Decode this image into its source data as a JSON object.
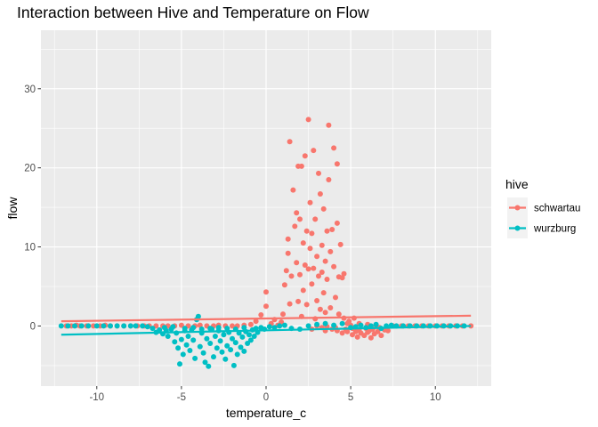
{
  "chart_data": {
    "type": "scatter",
    "title": "Interaction between Hive and Temperature on Flow",
    "xlabel": "temperature_c",
    "ylabel": "flow",
    "xlim": [
      -13.3,
      13.3
    ],
    "ylim": [
      -7.6,
      37.4
    ],
    "x_ticks": [
      -10,
      -5,
      0,
      5,
      10
    ],
    "x_tick_labels": [
      "-10",
      "-5",
      "0",
      "5",
      "10"
    ],
    "y_ticks": [
      0,
      10,
      20,
      30
    ],
    "y_tick_labels": [
      "0",
      "10",
      "20",
      "30"
    ],
    "grid": true,
    "legend": {
      "title": "hive",
      "position": "right"
    },
    "series": [
      {
        "name": "schwartau",
        "color": "#f8766d",
        "trend": [
          [
            -12.1,
            0.6
          ],
          [
            12.1,
            1.3
          ]
        ],
        "points": [
          [
            -11.8,
            0.0
          ],
          [
            -11.5,
            0.0
          ],
          [
            -11.2,
            0.1
          ],
          [
            -11.0,
            0.0
          ],
          [
            -10.6,
            0.0
          ],
          [
            -10.2,
            0.0
          ],
          [
            -9.8,
            0.0
          ],
          [
            -9.5,
            0.1
          ],
          [
            -9.2,
            0.0
          ],
          [
            -8.8,
            0.0
          ],
          [
            -8.4,
            0.0
          ],
          [
            -8.0,
            0.0
          ],
          [
            -7.6,
            0.0
          ],
          [
            -7.2,
            0.0
          ],
          [
            -6.9,
            0.0
          ],
          [
            -6.5,
            0.0
          ],
          [
            -6.1,
            0.0
          ],
          [
            -5.8,
            0.0
          ],
          [
            -5.4,
            0.0
          ],
          [
            -5.0,
            0.1
          ],
          [
            -4.6,
            0.0
          ],
          [
            -4.2,
            0.0
          ],
          [
            -3.9,
            0.1
          ],
          [
            -3.5,
            0.0
          ],
          [
            -3.1,
            0.0
          ],
          [
            -2.8,
            0.1
          ],
          [
            -2.4,
            0.0
          ],
          [
            -2.0,
            0.0
          ],
          [
            -1.7,
            0.0
          ],
          [
            -1.3,
            0.1
          ],
          [
            -0.9,
            0.2
          ],
          [
            -0.6,
            0.6
          ],
          [
            -0.3,
            1.4
          ],
          [
            0.0,
            2.5
          ],
          [
            0.0,
            4.3
          ],
          [
            0.3,
            0.3
          ],
          [
            0.5,
            0.8
          ],
          [
            0.7,
            0.1
          ],
          [
            0.9,
            0.5
          ],
          [
            1.0,
            1.5
          ],
          [
            1.1,
            5.2
          ],
          [
            1.2,
            7.0
          ],
          [
            1.3,
            9.2
          ],
          [
            1.3,
            11.0
          ],
          [
            1.4,
            2.8
          ],
          [
            1.4,
            23.3
          ],
          [
            1.5,
            6.3
          ],
          [
            1.6,
            17.2
          ],
          [
            1.7,
            12.6
          ],
          [
            1.8,
            8.0
          ],
          [
            1.8,
            14.3
          ],
          [
            1.9,
            3.1
          ],
          [
            1.9,
            20.2
          ],
          [
            2.0,
            6.5
          ],
          [
            2.0,
            13.5
          ],
          [
            2.1,
            1.2
          ],
          [
            2.1,
            20.2
          ],
          [
            2.2,
            10.5
          ],
          [
            2.2,
            4.5
          ],
          [
            2.3,
            21.5
          ],
          [
            2.3,
            7.7
          ],
          [
            2.4,
            12.0
          ],
          [
            2.4,
            2.7
          ],
          [
            2.5,
            26.1
          ],
          [
            2.5,
            7.2
          ],
          [
            2.6,
            15.6
          ],
          [
            2.6,
            9.8
          ],
          [
            2.7,
            5.3
          ],
          [
            2.7,
            11.7
          ],
          [
            2.8,
            7.3
          ],
          [
            2.8,
            22.2
          ],
          [
            2.9,
            13.5
          ],
          [
            2.9,
            0.9
          ],
          [
            3.0,
            8.8
          ],
          [
            3.0,
            3.2
          ],
          [
            3.1,
            19.3
          ],
          [
            3.1,
            6.3
          ],
          [
            3.2,
            16.7
          ],
          [
            3.2,
            2.1
          ],
          [
            3.3,
            10.2
          ],
          [
            3.3,
            6.8
          ],
          [
            3.4,
            14.8
          ],
          [
            3.4,
            4.2
          ],
          [
            3.5,
            8.2
          ],
          [
            3.5,
            1.7
          ],
          [
            3.6,
            12.0
          ],
          [
            3.6,
            5.9
          ],
          [
            3.7,
            18.5
          ],
          [
            3.7,
            25.4
          ],
          [
            3.8,
            9.4
          ],
          [
            3.8,
            2.3
          ],
          [
            3.9,
            12.2
          ],
          [
            4.0,
            22.5
          ],
          [
            4.0,
            7.5
          ],
          [
            4.1,
            3.6
          ],
          [
            4.2,
            20.5
          ],
          [
            4.2,
            13.0
          ],
          [
            4.3,
            6.2
          ],
          [
            4.3,
            1.5
          ],
          [
            4.4,
            10.3
          ],
          [
            4.5,
            6.1
          ],
          [
            4.6,
            1.0
          ],
          [
            4.6,
            6.6
          ],
          [
            4.8,
            0.3
          ],
          [
            4.9,
            0.6
          ],
          [
            5.0,
            0.1
          ],
          [
            5.2,
            1.0
          ],
          [
            5.5,
            0.3
          ],
          [
            6.0,
            0.2
          ],
          [
            6.5,
            0.1
          ],
          [
            3.0,
            0.0
          ],
          [
            3.3,
            -0.2
          ],
          [
            3.6,
            -0.1
          ],
          [
            3.9,
            -0.4
          ],
          [
            4.2,
            -0.6
          ],
          [
            4.5,
            -0.9
          ],
          [
            4.8,
            -0.7
          ],
          [
            5.1,
            -1.1
          ],
          [
            5.4,
            -1.4
          ],
          [
            5.6,
            -0.9
          ],
          [
            5.8,
            -1.2
          ],
          [
            6.0,
            -0.8
          ],
          [
            6.2,
            -1.5
          ],
          [
            6.4,
            -1.0
          ],
          [
            6.6,
            -0.7
          ],
          [
            6.8,
            -1.2
          ],
          [
            7.0,
            -0.5
          ],
          [
            7.2,
            -0.6
          ],
          [
            5.1,
            -0.3
          ],
          [
            5.5,
            -0.5
          ],
          [
            5.9,
            -0.3
          ],
          [
            6.3,
            -0.4
          ],
          [
            6.7,
            -0.2
          ],
          [
            7.1,
            -0.3
          ],
          [
            2.7,
            -0.4
          ],
          [
            3.5,
            -0.6
          ],
          [
            4.1,
            -0.2
          ],
          [
            4.7,
            -0.4
          ],
          [
            5.3,
            -0.7
          ],
          [
            6.1,
            -0.6
          ],
          [
            7.5,
            0.0
          ],
          [
            8.0,
            0.0
          ],
          [
            8.4,
            0.0
          ],
          [
            8.8,
            0.0
          ],
          [
            9.2,
            0.0
          ],
          [
            9.6,
            0.0
          ],
          [
            10.0,
            0.0
          ],
          [
            10.4,
            0.0
          ],
          [
            10.8,
            0.0
          ],
          [
            11.2,
            0.0
          ],
          [
            11.6,
            0.0
          ],
          [
            12.1,
            0.0
          ]
        ]
      },
      {
        "name": "wurzburg",
        "color": "#00bfc4",
        "trend": [
          [
            -12.1,
            -1.1
          ],
          [
            12.1,
            0.0
          ]
        ],
        "points": [
          [
            -12.1,
            0.0
          ],
          [
            -11.7,
            0.0
          ],
          [
            -11.3,
            0.0
          ],
          [
            -10.9,
            0.0
          ],
          [
            -10.5,
            0.0
          ],
          [
            -10.0,
            0.0
          ],
          [
            -9.6,
            0.0
          ],
          [
            -9.2,
            0.0
          ],
          [
            -8.8,
            0.0
          ],
          [
            -8.4,
            0.0
          ],
          [
            -8.0,
            0.0
          ],
          [
            -7.7,
            0.0
          ],
          [
            -7.3,
            0.0
          ],
          [
            -7.0,
            -0.1
          ],
          [
            -6.7,
            -0.3
          ],
          [
            -6.5,
            -0.8
          ],
          [
            -6.3,
            -0.5
          ],
          [
            -6.1,
            -1.0
          ],
          [
            -5.9,
            -0.6
          ],
          [
            -5.8,
            -1.3
          ],
          [
            -5.6,
            -0.4
          ],
          [
            -5.4,
            -2.0
          ],
          [
            -5.3,
            -0.9
          ],
          [
            -5.2,
            -2.8
          ],
          [
            -5.1,
            -4.8
          ],
          [
            -5.0,
            -1.7
          ],
          [
            -4.9,
            -3.6
          ],
          [
            -4.8,
            -0.6
          ],
          [
            -4.7,
            -2.4
          ],
          [
            -4.6,
            -1.3
          ],
          [
            -4.5,
            -3.1
          ],
          [
            -4.4,
            -0.5
          ],
          [
            -4.3,
            -1.8
          ],
          [
            -4.2,
            -4.1
          ],
          [
            -4.1,
            0.8
          ],
          [
            -4.0,
            1.2
          ],
          [
            -3.9,
            -2.6
          ],
          [
            -3.8,
            -0.9
          ],
          [
            -3.7,
            -3.4
          ],
          [
            -3.6,
            -4.6
          ],
          [
            -3.5,
            -1.6
          ],
          [
            -3.4,
            -5.1
          ],
          [
            -3.3,
            -2.2
          ],
          [
            -3.2,
            -0.4
          ],
          [
            -3.1,
            -3.9
          ],
          [
            -3.0,
            -1.3
          ],
          [
            -2.9,
            -2.8
          ],
          [
            -2.8,
            -0.6
          ],
          [
            -2.7,
            -1.9
          ],
          [
            -2.6,
            -3.3
          ],
          [
            -2.5,
            -1.1
          ],
          [
            -2.4,
            -4.2
          ],
          [
            -2.3,
            -2.5
          ],
          [
            -2.2,
            -0.8
          ],
          [
            -2.1,
            -3.0
          ],
          [
            -2.0,
            -1.6
          ],
          [
            -1.9,
            -5.0
          ],
          [
            -1.8,
            -2.1
          ],
          [
            -1.7,
            -3.6
          ],
          [
            -1.6,
            -0.9
          ],
          [
            -1.5,
            -2.7
          ],
          [
            -1.4,
            -1.4
          ],
          [
            -1.3,
            -3.2
          ],
          [
            -1.2,
            -0.7
          ],
          [
            -1.1,
            -2.2
          ],
          [
            -1.0,
            -1.1
          ],
          [
            -0.9,
            -1.8
          ],
          [
            -0.8,
            -0.5
          ],
          [
            -0.7,
            -1.3
          ],
          [
            -0.6,
            -0.3
          ],
          [
            -0.5,
            -0.8
          ],
          [
            -0.3,
            -0.2
          ],
          [
            -0.1,
            -0.4
          ],
          [
            0.2,
            -0.1
          ],
          [
            0.5,
            -0.2
          ],
          [
            0.8,
            0.0
          ],
          [
            1.1,
            0.1
          ],
          [
            1.5,
            -0.3
          ],
          [
            2.0,
            -0.4
          ],
          [
            2.5,
            0.0
          ],
          [
            3.0,
            0.2
          ],
          [
            3.5,
            0.3
          ],
          [
            4.0,
            0.1
          ],
          [
            4.5,
            0.3
          ],
          [
            -6.0,
            -0.2
          ],
          [
            -5.5,
            -0.1
          ],
          [
            -4.8,
            -0.3
          ],
          [
            -4.3,
            -0.2
          ],
          [
            -3.8,
            -0.4
          ],
          [
            -3.3,
            -0.3
          ],
          [
            -2.8,
            -0.2
          ],
          [
            -2.3,
            -0.3
          ],
          [
            -1.8,
            -0.4
          ],
          [
            -1.3,
            -0.2
          ],
          [
            5.0,
            -0.2
          ],
          [
            5.3,
            -0.1
          ],
          [
            5.6,
            0.1
          ],
          [
            5.9,
            -0.2
          ],
          [
            6.2,
            0.0
          ],
          [
            6.5,
            0.2
          ],
          [
            6.8,
            -0.3
          ],
          [
            7.1,
            0.0
          ],
          [
            7.4,
            0.1
          ],
          [
            7.7,
            0.0
          ],
          [
            8.1,
            0.0
          ],
          [
            8.5,
            0.0
          ],
          [
            8.9,
            0.0
          ],
          [
            9.3,
            0.0
          ],
          [
            9.7,
            0.0
          ],
          [
            10.1,
            0.0
          ],
          [
            10.5,
            0.0
          ],
          [
            10.9,
            0.0
          ],
          [
            11.3,
            0.0
          ],
          [
            11.7,
            0.0
          ]
        ]
      }
    ]
  }
}
